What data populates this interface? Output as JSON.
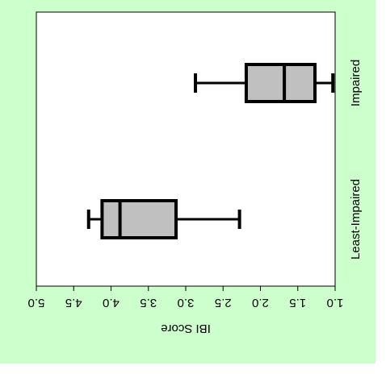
{
  "chart_data": {
    "type": "boxplot",
    "orientation": "rotated-90-clockwise",
    "ylabel": "IBI Score",
    "ylim": [
      1.0,
      5.0
    ],
    "ytick_labels": [
      "1.0",
      "1.5",
      "2.0",
      "2.5",
      "3.0",
      "3.5",
      "4.0",
      "4.5",
      "5.0"
    ],
    "categories": [
      "Least-Impaired",
      "Impaired"
    ],
    "boxes": [
      {
        "category": "Least-Impaired",
        "whisker_low": 2.28,
        "q1": 3.13,
        "median": 3.88,
        "q3": 4.12,
        "whisker_high": 4.3
      },
      {
        "category": "Impaired",
        "whisker_low": 1.03,
        "q1": 1.27,
        "median": 1.68,
        "q3": 2.19,
        "whisker_high": 2.87
      }
    ],
    "grid": false,
    "colors": {
      "box_fill": "#c0c0c0",
      "stroke": "#000000",
      "plot_bg": "#ffffff",
      "panel_bg": "#ccffcc"
    }
  }
}
